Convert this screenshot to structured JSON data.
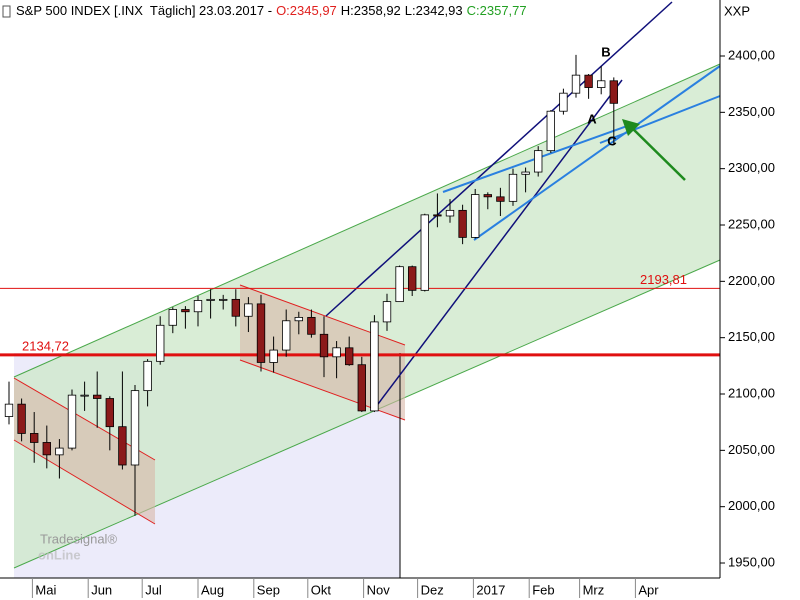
{
  "chart_data": {
    "type": "candlestick",
    "header": {
      "title": "S&P 500 INDEX [.INX  Täglich] 23.03.2017 -",
      "ohlc": [
        {
          "prefix": "O:",
          "value": 2345.97,
          "label": "2345,97",
          "color": "#e0201e"
        },
        {
          "prefix": "H:",
          "value": 2358.92,
          "label": "2358,92",
          "color": "#000000"
        },
        {
          "prefix": "L:",
          "value": 2342.93,
          "label": "2342,93",
          "color": "#000000"
        },
        {
          "prefix": "C:",
          "value": 2357.77,
          "label": "2357,77",
          "color": "#22a022"
        }
      ]
    },
    "symbol": "XXP",
    "watermark": {
      "small": "Tradesignal®",
      "big": "onLine"
    },
    "annotations": [
      "A",
      "B",
      "C"
    ],
    "levels": [
      {
        "value": 2193.81,
        "label": "2193,81",
        "width": 1
      },
      {
        "value": 2134.72,
        "label": "2134,72",
        "width": 3
      }
    ],
    "up_color": "#ffffff",
    "down_color": "#8b1a1a",
    "x": [
      -7,
      0,
      7,
      14,
      21,
      28,
      35,
      42,
      49,
      56,
      63,
      70,
      77,
      84,
      91,
      98,
      105,
      112,
      119,
      126,
      133,
      140,
      147,
      154,
      161,
      168,
      175,
      182,
      189,
      196,
      203,
      210,
      217,
      224,
      231,
      238,
      245,
      252,
      259,
      266,
      273,
      280,
      287,
      294,
      301,
      308,
      315,
      322,
      329
    ],
    "open": [
      2080,
      2091,
      2065,
      2057,
      2046,
      2052,
      2099,
      2099,
      2096,
      2071,
      2037,
      2103,
      2129,
      2161,
      2175,
      2173,
      2183,
      2184,
      2184,
      2169,
      2180,
      2128,
      2139,
      2165,
      2168,
      2153,
      2133,
      2141,
      2126,
      2085,
      2164,
      2182,
      2213,
      2192,
      2259,
      2258,
      2263,
      2239,
      2277,
      2275,
      2271,
      2295,
      2297,
      2316,
      2351,
      2367,
      2383,
      2372,
      2378
    ],
    "high": [
      2111,
      2096,
      2084,
      2072,
      2060,
      2104,
      2111,
      2120,
      2098,
      2120,
      2108,
      2131,
      2169,
      2177,
      2178,
      2187,
      2193,
      2188,
      2193,
      2186,
      2188,
      2151,
      2175,
      2173,
      2175,
      2169,
      2147,
      2151,
      2133,
      2170,
      2189,
      2214,
      2214,
      2260,
      2278,
      2273,
      2268,
      2282,
      2279,
      2283,
      2300,
      2301,
      2320,
      2352,
      2371,
      2401,
      2384,
      2391,
      2381
    ],
    "low": [
      2073,
      2058,
      2039,
      2034,
      2025,
      2050,
      2085,
      2070,
      2050,
      2033,
      1992,
      2089,
      2126,
      2154,
      2158,
      2160,
      2167,
      2175,
      2160,
      2155,
      2120,
      2119,
      2133,
      2153,
      2150,
      2115,
      2114,
      2125,
      2084,
      2084,
      2156,
      2182,
      2187,
      2191,
      2248,
      2252,
      2233,
      2238,
      2264,
      2258,
      2267,
      2279,
      2293,
      2314,
      2348,
      2363,
      2362,
      2366,
      2322
    ],
    "close": [
      2091,
      2065,
      2057,
      2046,
      2052,
      2099,
      2099,
      2096,
      2071,
      2037,
      2103,
      2129,
      2161,
      2175,
      2173,
      2183,
      2184,
      2184,
      2169,
      2180,
      2128,
      2139,
      2165,
      2168,
      2153,
      2133,
      2141,
      2126,
      2085,
      2164,
      2182,
      2213,
      2192,
      2259,
      2258,
      2263,
      2239,
      2277,
      2275,
      2271,
      2295,
      2297,
      2316,
      2351,
      2367,
      2383,
      2372,
      2378,
      2358
    ],
    "xlim": [
      -12,
      388
    ],
    "xticks": [
      {
        "value": 6,
        "label": "Mai"
      },
      {
        "value": 37,
        "label": "Jun"
      },
      {
        "value": 67,
        "label": "Jul"
      },
      {
        "value": 98,
        "label": "Aug"
      },
      {
        "value": 129,
        "label": "Sep"
      },
      {
        "value": 159,
        "label": "Okt"
      },
      {
        "value": 190,
        "label": "Nov"
      },
      {
        "value": 220,
        "label": "Dez"
      },
      {
        "value": 251,
        "label": "2017"
      },
      {
        "value": 282,
        "label": "Feb"
      },
      {
        "value": 310,
        "label": "Mrz"
      },
      {
        "value": 341,
        "label": "Apr"
      }
    ],
    "ylim": [
      1936.7,
      2449.7
    ],
    "yticks": [
      {
        "value": 1950,
        "label": "1950,00"
      },
      {
        "value": 2000,
        "label": "2000,00"
      },
      {
        "value": 2050,
        "label": "2050,00"
      },
      {
        "value": 2100,
        "label": "2100,00"
      },
      {
        "value": 2150,
        "label": "2150,00"
      },
      {
        "value": 2200,
        "label": "2200,00"
      },
      {
        "value": 2250,
        "label": "2250,00"
      },
      {
        "value": 2300,
        "label": "2300,00"
      },
      {
        "value": 2350,
        "label": "2350,00"
      },
      {
        "value": 2400,
        "label": "2400,00"
      }
    ]
  }
}
